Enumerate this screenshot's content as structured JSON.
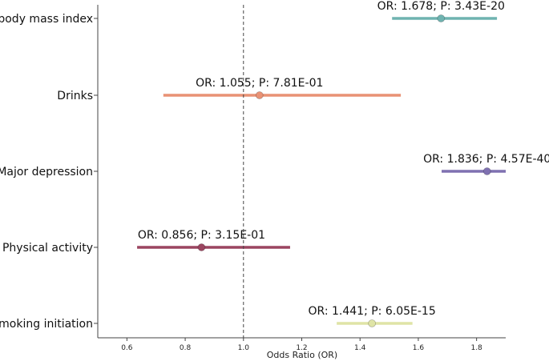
{
  "chart_data": {
    "type": "forest",
    "xlabel": "Odds Ratio (OR)",
    "xlim": [
      0.5,
      1.9
    ],
    "x_ticks": [
      "0.6",
      "0.8",
      "1.0",
      "1.2",
      "1.4",
      "1.6",
      "1.8"
    ],
    "reference_x": 1.0,
    "rows": [
      {
        "label": "body mass index",
        "or": 1.678,
        "ci_low": 1.51,
        "ci_high": 1.87,
        "annotation": "OR: 1.678; P: 3.43E-20",
        "color": "#6fb3b0"
      },
      {
        "label": "Drinks",
        "or": 1.055,
        "ci_low": 0.725,
        "ci_high": 1.54,
        "annotation": "OR: 1.055; P: 7.81E-01",
        "color": "#e99275"
      },
      {
        "label": "Major depression",
        "or": 1.836,
        "ci_low": 1.68,
        "ci_high": 1.9,
        "annotation": "OR: 1.836; P: 4.57E-40",
        "color": "#7f71b1"
      },
      {
        "label": "Physical activity",
        "or": 0.856,
        "ci_low": 0.635,
        "ci_high": 1.16,
        "annotation": "OR: 0.856; P: 3.15E-01",
        "color": "#9b4560"
      },
      {
        "label": "smoking initiation",
        "or": 1.441,
        "ci_low": 1.32,
        "ci_high": 1.58,
        "annotation": "OR: 1.441; P: 6.05E-15",
        "color": "#dfe4a6"
      }
    ]
  }
}
